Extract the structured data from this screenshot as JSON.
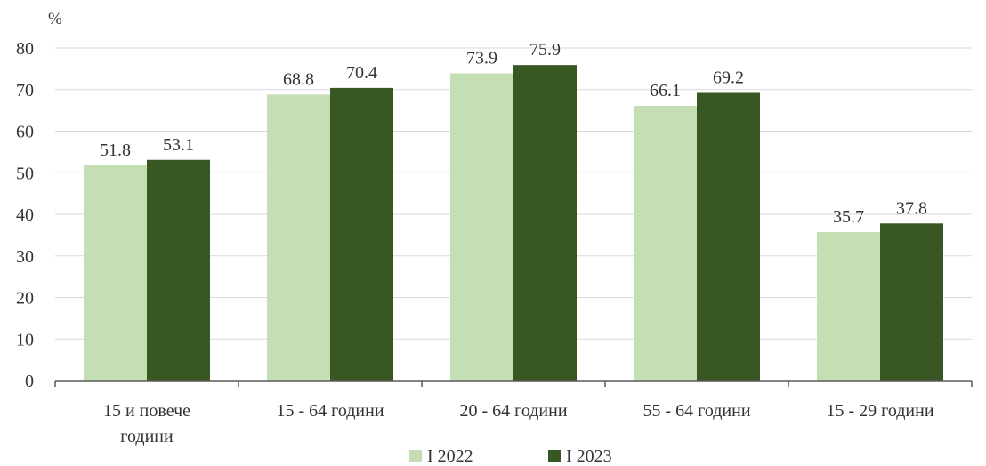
{
  "chart_data": {
    "type": "bar",
    "unit_label": "%",
    "categories": [
      [
        "15 и повече",
        "години"
      ],
      [
        "15 - 64 години"
      ],
      [
        "20 - 64 години"
      ],
      [
        "55 - 64 години"
      ],
      [
        "15 - 29 години"
      ]
    ],
    "series": [
      {
        "name": "I 2022",
        "color": "#c5dfb4",
        "values": [
          51.8,
          68.8,
          73.9,
          66.1,
          35.7
        ]
      },
      {
        "name": "I 2023",
        "color": "#385723",
        "values": [
          53.1,
          70.4,
          75.9,
          69.2,
          37.8
        ]
      }
    ],
    "ylim": [
      0,
      80
    ],
    "yticks": [
      0,
      10,
      20,
      30,
      40,
      50,
      60,
      70,
      80
    ],
    "grid": true,
    "legend": "bottom"
  }
}
